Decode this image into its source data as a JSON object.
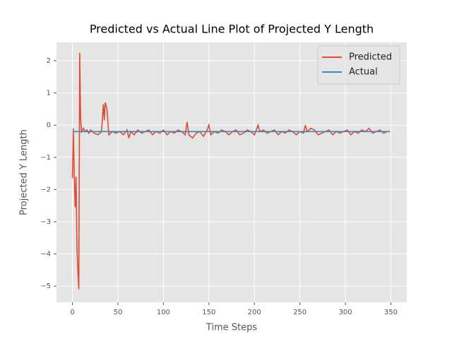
{
  "chart_data": {
    "type": "line",
    "title": "Predicted vs Actual Line Plot of Projected Y Length",
    "x_label": "Time Steps",
    "y_label": "Projected Y Length",
    "x": [
      0,
      1,
      2,
      3,
      4,
      5,
      6,
      7,
      8,
      9,
      10,
      12,
      14,
      16,
      18,
      20,
      24,
      28,
      32,
      34,
      35,
      36,
      38,
      40,
      44,
      48,
      52,
      56,
      60,
      62,
      64,
      68,
      72,
      76,
      80,
      84,
      88,
      92,
      96,
      100,
      104,
      108,
      112,
      116,
      120,
      124,
      126,
      128,
      132,
      136,
      140,
      144,
      148,
      150,
      152,
      156,
      160,
      164,
      168,
      172,
      176,
      180,
      184,
      188,
      192,
      196,
      200,
      204,
      206,
      210,
      214,
      218,
      222,
      226,
      230,
      234,
      238,
      242,
      246,
      250,
      254,
      256,
      258,
      262,
      266,
      270,
      274,
      278,
      282,
      286,
      290,
      294,
      298,
      302,
      306,
      310,
      314,
      318,
      322,
      326,
      330,
      334,
      338,
      342,
      346,
      349
    ],
    "series": [
      {
        "name": "Predicted",
        "color": "#E24A33",
        "values": [
          -1.65,
          -0.1,
          -1.5,
          -2.55,
          -1.6,
          -3.8,
          -4.55,
          -5.1,
          2.25,
          0.2,
          -0.2,
          -0.1,
          -0.2,
          -0.15,
          -0.25,
          -0.15,
          -0.25,
          -0.3,
          -0.2,
          0.65,
          0.15,
          0.7,
          0.5,
          -0.3,
          -0.2,
          -0.25,
          -0.2,
          -0.3,
          -0.15,
          -0.4,
          -0.2,
          -0.3,
          -0.15,
          -0.25,
          -0.2,
          -0.15,
          -0.3,
          -0.2,
          -0.25,
          -0.15,
          -0.3,
          -0.2,
          -0.25,
          -0.15,
          -0.2,
          -0.3,
          0.1,
          -0.3,
          -0.4,
          -0.25,
          -0.2,
          -0.35,
          -0.15,
          0.0,
          -0.3,
          -0.2,
          -0.25,
          -0.15,
          -0.2,
          -0.3,
          -0.2,
          -0.15,
          -0.3,
          -0.25,
          -0.15,
          -0.2,
          -0.3,
          0.0,
          -0.2,
          -0.15,
          -0.25,
          -0.2,
          -0.15,
          -0.3,
          -0.2,
          -0.25,
          -0.15,
          -0.2,
          -0.3,
          -0.2,
          -0.25,
          0.0,
          -0.2,
          -0.1,
          -0.15,
          -0.3,
          -0.25,
          -0.2,
          -0.15,
          -0.3,
          -0.2,
          -0.25,
          -0.2,
          -0.15,
          -0.3,
          -0.2,
          -0.25,
          -0.15,
          -0.2,
          -0.1,
          -0.25,
          -0.2,
          -0.15,
          -0.25,
          -0.2,
          -0.2
        ]
      },
      {
        "name": "Actual",
        "color": "#348ABD",
        "values": [
          -0.2,
          -0.2,
          -0.2,
          -0.2,
          -0.2,
          -0.2,
          -0.2,
          -0.2,
          -0.2,
          -0.2,
          -0.2,
          -0.2,
          -0.2,
          -0.2,
          -0.2,
          -0.2,
          -0.2,
          -0.2,
          -0.2,
          -0.2,
          -0.2,
          -0.2,
          -0.2,
          -0.2,
          -0.2,
          -0.2,
          -0.2,
          -0.2,
          -0.2,
          -0.2,
          -0.2,
          -0.2,
          -0.2,
          -0.2,
          -0.2,
          -0.2,
          -0.2,
          -0.2,
          -0.2,
          -0.2,
          -0.2,
          -0.2,
          -0.2,
          -0.2,
          -0.2,
          -0.2,
          -0.2,
          -0.2,
          -0.2,
          -0.2,
          -0.2,
          -0.2,
          -0.2,
          -0.2,
          -0.2,
          -0.2,
          -0.2,
          -0.2,
          -0.2,
          -0.2,
          -0.2,
          -0.2,
          -0.2,
          -0.2,
          -0.2,
          -0.2,
          -0.2,
          -0.2,
          -0.2,
          -0.2,
          -0.2,
          -0.2,
          -0.2,
          -0.2,
          -0.2,
          -0.2,
          -0.2,
          -0.2,
          -0.2,
          -0.2,
          -0.2,
          -0.2,
          -0.2,
          -0.2,
          -0.2,
          -0.2,
          -0.2,
          -0.2,
          -0.2,
          -0.2,
          -0.2,
          -0.2,
          -0.2,
          -0.2,
          -0.2,
          -0.2,
          -0.2,
          -0.2,
          -0.2,
          -0.2,
          -0.2,
          -0.2,
          -0.2,
          -0.2,
          -0.2,
          -0.2
        ]
      }
    ],
    "xlim": [
      -17.5,
      367.5
    ],
    "ylim": [
      -5.5,
      2.57
    ],
    "xticks": [
      0,
      50,
      100,
      150,
      200,
      250,
      300,
      350
    ],
    "yticks": [
      {
        "value": -5,
        "label": "−5"
      },
      {
        "value": -4,
        "label": "−4"
      },
      {
        "value": -3,
        "label": "−3"
      },
      {
        "value": -2,
        "label": "−2"
      },
      {
        "value": -1,
        "label": "−1"
      },
      0,
      1,
      2
    ],
    "grid": true,
    "legend": "upper-right"
  }
}
